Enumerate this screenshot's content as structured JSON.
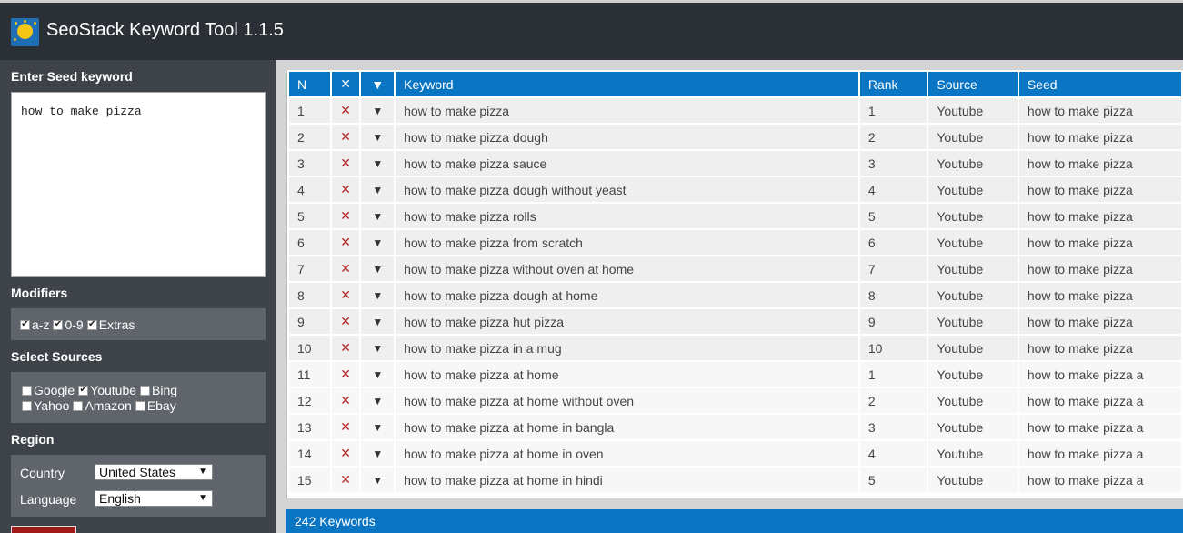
{
  "app": {
    "title": "SeoStack Keyword Tool 1.1.5",
    "logo_icon": "sun-icon"
  },
  "sidebar": {
    "seed_title": "Enter Seed keyword",
    "seed_value": "how to make pizza",
    "modifiers_title": "Modifiers",
    "modifiers": [
      {
        "label": "a-z",
        "checked": true
      },
      {
        "label": "0-9",
        "checked": true
      },
      {
        "label": "Extras",
        "checked": true
      }
    ],
    "sources_title": "Select Sources",
    "sources": [
      {
        "label": "Google",
        "checked": false
      },
      {
        "label": "Youtube",
        "checked": true
      },
      {
        "label": "Bing",
        "checked": false
      },
      {
        "label": "Yahoo",
        "checked": false
      },
      {
        "label": "Amazon",
        "checked": false
      },
      {
        "label": "Ebay",
        "checked": false
      }
    ],
    "region_title": "Region",
    "country_label": "Country",
    "country_value": "United States",
    "language_label": "Language",
    "language_value": "English"
  },
  "table": {
    "headers": {
      "n": "N",
      "remove": "✕",
      "menu": "▼",
      "keyword": "Keyword",
      "rank": "Rank",
      "source": "Source",
      "seed": "Seed"
    },
    "remove_glyph": "✕",
    "menu_glyph": "▼",
    "rows": [
      {
        "n": "1",
        "keyword": "how to make pizza",
        "rank": "1",
        "source": "Youtube",
        "seed": "how to make pizza"
      },
      {
        "n": "2",
        "keyword": "how to make pizza dough",
        "rank": "2",
        "source": "Youtube",
        "seed": "how to make pizza"
      },
      {
        "n": "3",
        "keyword": "how to make pizza sauce",
        "rank": "3",
        "source": "Youtube",
        "seed": "how to make pizza"
      },
      {
        "n": "4",
        "keyword": "how to make pizza dough without yeast",
        "rank": "4",
        "source": "Youtube",
        "seed": "how to make pizza"
      },
      {
        "n": "5",
        "keyword": "how to make pizza rolls",
        "rank": "5",
        "source": "Youtube",
        "seed": "how to make pizza"
      },
      {
        "n": "6",
        "keyword": "how to make pizza from scratch",
        "rank": "6",
        "source": "Youtube",
        "seed": "how to make pizza"
      },
      {
        "n": "7",
        "keyword": "how to make pizza without oven at home",
        "rank": "7",
        "source": "Youtube",
        "seed": "how to make pizza"
      },
      {
        "n": "8",
        "keyword": "how to make pizza dough at home",
        "rank": "8",
        "source": "Youtube",
        "seed": "how to make pizza"
      },
      {
        "n": "9",
        "keyword": "how to make pizza hut pizza",
        "rank": "9",
        "source": "Youtube",
        "seed": "how to make pizza"
      },
      {
        "n": "10",
        "keyword": "how to make pizza in a mug",
        "rank": "10",
        "source": "Youtube",
        "seed": "how to make pizza"
      },
      {
        "n": "11",
        "keyword": "how to make pizza at home",
        "rank": "1",
        "source": "Youtube",
        "seed": "how to make pizza a"
      },
      {
        "n": "12",
        "keyword": "how to make pizza at home without oven",
        "rank": "2",
        "source": "Youtube",
        "seed": "how to make pizza a"
      },
      {
        "n": "13",
        "keyword": "how to make pizza at home in bangla",
        "rank": "3",
        "source": "Youtube",
        "seed": "how to make pizza a"
      },
      {
        "n": "14",
        "keyword": "how to make pizza at home in oven",
        "rank": "4",
        "source": "Youtube",
        "seed": "how to make pizza a"
      },
      {
        "n": "15",
        "keyword": "how to make pizza at home in hindi",
        "rank": "5",
        "source": "Youtube",
        "seed": "how to make pizza a"
      }
    ]
  },
  "footer": {
    "count_text": "242 Keywords"
  },
  "colors": {
    "header_blue": "#0a75c2",
    "topbar": "#2b3036",
    "sidebar": "#3d4349",
    "remove_red": "#b22222"
  }
}
